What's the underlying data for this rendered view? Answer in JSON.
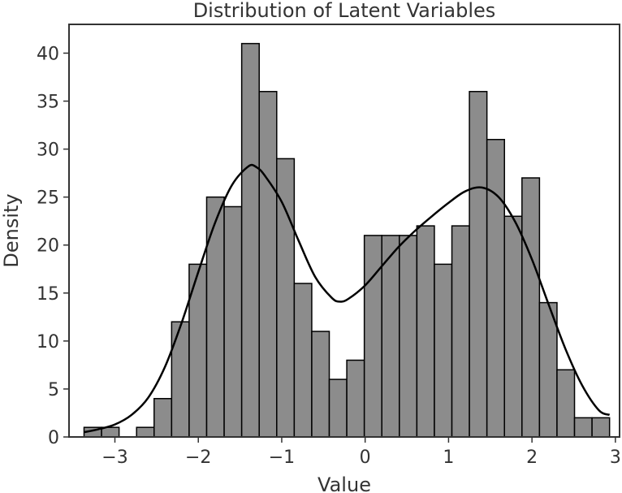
{
  "chart_data": {
    "type": "bar",
    "title": "Distribution of Latent Variables",
    "xlabel": "Value",
    "ylabel": "Density",
    "xlim": [
      -3.55,
      3.05
    ],
    "ylim": [
      0,
      43
    ],
    "xticks": [
      -3,
      -2,
      -1,
      0,
      1,
      2,
      3
    ],
    "xtick_labels": [
      "−3",
      "−2",
      "−1",
      "0",
      "1",
      "2",
      "3"
    ],
    "yticks": [
      0,
      5,
      10,
      15,
      20,
      25,
      30,
      35,
      40
    ],
    "ytick_labels": [
      "0",
      "5",
      "10",
      "15",
      "20",
      "25",
      "30",
      "35",
      "40"
    ],
    "grid": false,
    "colors": {
      "bar_fill": "#8c8c8c",
      "bar_edge": "#000000",
      "kde_line": "#000000",
      "frame": "#333333"
    },
    "bins": [
      {
        "x0": -3.37,
        "x1": -3.16,
        "count": 1
      },
      {
        "x0": -3.16,
        "x1": -2.95,
        "count": 1
      },
      {
        "x0": -2.95,
        "x1": -2.74,
        "count": 0
      },
      {
        "x0": -2.74,
        "x1": -2.53,
        "count": 1
      },
      {
        "x0": -2.53,
        "x1": -2.32,
        "count": 4
      },
      {
        "x0": -2.32,
        "x1": -2.11,
        "count": 12
      },
      {
        "x0": -2.11,
        "x1": -1.9,
        "count": 18
      },
      {
        "x0": -1.9,
        "x1": -1.69,
        "count": 25
      },
      {
        "x0": -1.69,
        "x1": -1.48,
        "count": 24
      },
      {
        "x0": -1.48,
        "x1": -1.27,
        "count": 41
      },
      {
        "x0": -1.27,
        "x1": -1.06,
        "count": 36
      },
      {
        "x0": -1.06,
        "x1": -0.85,
        "count": 29
      },
      {
        "x0": -0.85,
        "x1": -0.64,
        "count": 16
      },
      {
        "x0": -0.64,
        "x1": -0.43,
        "count": 11
      },
      {
        "x0": -0.43,
        "x1": -0.22,
        "count": 6
      },
      {
        "x0": -0.22,
        "x1": -0.01,
        "count": 8
      },
      {
        "x0": -0.01,
        "x1": 0.2,
        "count": 21
      },
      {
        "x0": 0.2,
        "x1": 0.41,
        "count": 21
      },
      {
        "x0": 0.41,
        "x1": 0.62,
        "count": 21
      },
      {
        "x0": 0.62,
        "x1": 0.83,
        "count": 22
      },
      {
        "x0": 0.83,
        "x1": 1.04,
        "count": 18
      },
      {
        "x0": 1.04,
        "x1": 1.25,
        "count": 22
      },
      {
        "x0": 1.25,
        "x1": 1.46,
        "count": 36
      },
      {
        "x0": 1.46,
        "x1": 1.67,
        "count": 31
      },
      {
        "x0": 1.67,
        "x1": 1.88,
        "count": 23
      },
      {
        "x0": 1.88,
        "x1": 2.09,
        "count": 27
      },
      {
        "x0": 2.09,
        "x1": 2.3,
        "count": 14
      },
      {
        "x0": 2.3,
        "x1": 2.51,
        "count": 7
      },
      {
        "x0": 2.51,
        "x1": 2.72,
        "count": 2
      },
      {
        "x0": 2.72,
        "x1": 2.93,
        "count": 2
      }
    ],
    "kde": {
      "x": [
        -3.37,
        -3.2,
        -3.0,
        -2.8,
        -2.6,
        -2.4,
        -2.2,
        -2.0,
        -1.8,
        -1.6,
        -1.4,
        -1.3,
        -1.2,
        -1.0,
        -0.8,
        -0.6,
        -0.4,
        -0.3,
        -0.2,
        0.0,
        0.2,
        0.4,
        0.6,
        0.8,
        1.0,
        1.2,
        1.4,
        1.6,
        1.8,
        2.0,
        2.2,
        2.4,
        2.6,
        2.8,
        2.93
      ],
      "y": [
        0.5,
        0.8,
        1.3,
        2.3,
        4.1,
        7.3,
        11.9,
        17.2,
        22.3,
        26.2,
        28.2,
        28.1,
        27.2,
        24.5,
        20.5,
        16.7,
        14.5,
        14.1,
        14.4,
        15.8,
        17.8,
        19.8,
        21.5,
        23.0,
        24.4,
        25.6,
        26.0,
        25.0,
        22.4,
        18.5,
        13.8,
        9.2,
        5.4,
        2.8,
        2.3
      ]
    }
  }
}
